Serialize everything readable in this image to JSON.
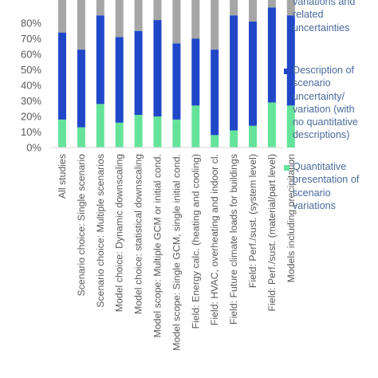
{
  "chart_data": {
    "type": "bar",
    "stacked": true,
    "categories": [
      "All studies",
      "Scenario choice: Single scenario",
      "Scenario choice: Multiple scenarios",
      "Model choice: Dynamic downscaling",
      "Model choice: statistical downscaling",
      "Model scope: Multiple GCM or initial cond.",
      "Model scope: Single GCM, single initial cond.",
      "Field: Energy calc. (heating and cooling)",
      "Field: HVAC, overheating and indoor cl.",
      "Field: Future climate loads for buildings",
      "Field: Perf./sust. (system level)",
      "Field: Perf./sust. (material/part level)",
      "Models including precipitation"
    ],
    "series": [
      {
        "name": "Quantitative presentation of scenario variations",
        "color": "#66e39a",
        "values": [
          18,
          13,
          28,
          16,
          21,
          20,
          18,
          27,
          8,
          11,
          14,
          29,
          27
        ]
      },
      {
        "name": "Description of scenario uncertainty/ variation (with no quantitative descriptions)",
        "color": "#1f47c8",
        "values": [
          56,
          50,
          57,
          55,
          54,
          62,
          49,
          43,
          55,
          74,
          67,
          61,
          58
        ]
      },
      {
        "name": "variations and related uncertainties",
        "color": "#a6a6a6",
        "values": [
          26,
          37,
          15,
          29,
          25,
          18,
          33,
          30,
          37,
          15,
          19,
          10,
          15
        ]
      }
    ],
    "yticks": [
      "0%",
      "10%",
      "20%",
      "30%",
      "40%",
      "50%",
      "60%",
      "70%",
      "80%"
    ],
    "ylim": [
      0,
      100
    ],
    "visible_ylim": [
      0,
      84
    ],
    "grid": false,
    "legend_placement": "right"
  },
  "legend": {
    "top_text": "variations and\nrelated\nuncertainties",
    "middle_text": "Description of\nscenario\nuncertainty/\nvariation (with\nno quantitative\ndescriptions)",
    "bottom_text": "Quantitative\npresentation of\nscenario\nvariations"
  }
}
